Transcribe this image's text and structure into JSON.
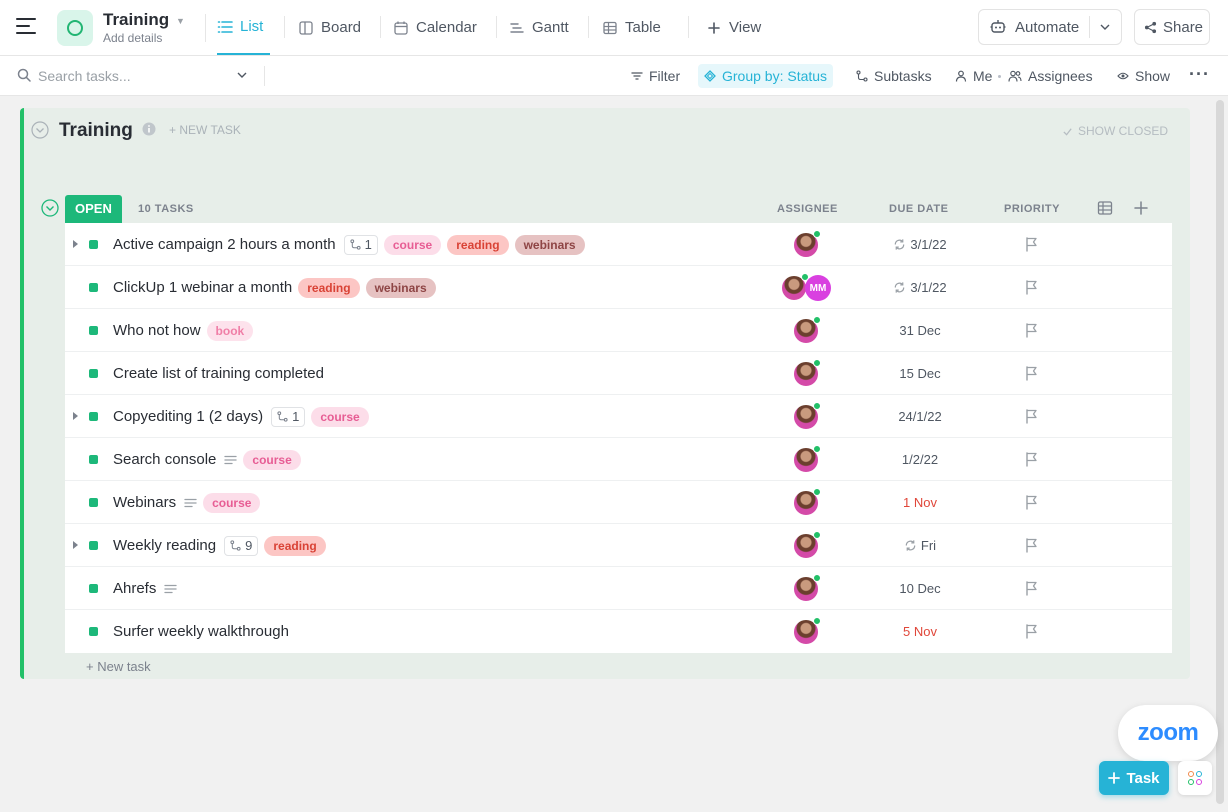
{
  "header": {
    "space_title": "Training",
    "space_subtitle": "Add details",
    "tabs": [
      {
        "label": "List",
        "icon": "list-icon",
        "active": true
      },
      {
        "label": "Board",
        "icon": "board-icon",
        "active": false
      },
      {
        "label": "Calendar",
        "icon": "calendar-icon",
        "active": false
      },
      {
        "label": "Gantt",
        "icon": "gantt-icon",
        "active": false
      },
      {
        "label": "Table",
        "icon": "table-icon",
        "active": false
      }
    ],
    "add_view_label": "View",
    "automate_label": "Automate",
    "share_label": "Share"
  },
  "toolbar": {
    "search_placeholder": "Search tasks...",
    "filter_label": "Filter",
    "group_by_label": "Group by: Status",
    "subtasks_label": "Subtasks",
    "me_label": "Me",
    "assignees_label": "Assignees",
    "show_label": "Show"
  },
  "list": {
    "title": "Training",
    "new_task_label": "+ NEW TASK",
    "show_closed_label": "SHOW CLOSED",
    "status_label": "OPEN",
    "task_count_label": "10 TASKS",
    "columns": {
      "assignee": "ASSIGNEE",
      "due_date": "DUE DATE",
      "priority": "PRIORITY"
    },
    "new_task_bottom_label": "+ New task",
    "tasks": [
      {
        "name": "Active campaign 2 hours a month",
        "has_subtasks": true,
        "subtask_count": "1",
        "has_description": false,
        "tags": [
          "course",
          "reading",
          "webinars"
        ],
        "assignees": [
          "avatar"
        ],
        "due": "3/1/22",
        "recurring": true,
        "overdue": false
      },
      {
        "name": "ClickUp 1 webinar a month",
        "has_subtasks": false,
        "subtask_count": "",
        "has_description": false,
        "tags": [
          "reading",
          "webinars"
        ],
        "assignees": [
          "avatar",
          "MM"
        ],
        "due": "3/1/22",
        "recurring": true,
        "overdue": false
      },
      {
        "name": "Who not how",
        "has_subtasks": false,
        "subtask_count": "",
        "has_description": false,
        "tags": [
          "book"
        ],
        "assignees": [
          "avatar"
        ],
        "due": "31 Dec",
        "recurring": false,
        "overdue": false
      },
      {
        "name": "Create list of training completed",
        "has_subtasks": false,
        "subtask_count": "",
        "has_description": false,
        "tags": [],
        "assignees": [
          "avatar"
        ],
        "due": "15 Dec",
        "recurring": false,
        "overdue": false
      },
      {
        "name": "Copyediting 1 (2 days)",
        "has_subtasks": true,
        "subtask_count": "1",
        "has_description": false,
        "tags": [
          "course"
        ],
        "assignees": [
          "avatar"
        ],
        "due": "24/1/22",
        "recurring": false,
        "overdue": false
      },
      {
        "name": "Search console",
        "has_subtasks": false,
        "subtask_count": "",
        "has_description": true,
        "tags": [
          "course"
        ],
        "assignees": [
          "avatar"
        ],
        "due": "1/2/22",
        "recurring": false,
        "overdue": false
      },
      {
        "name": "Webinars",
        "has_subtasks": false,
        "subtask_count": "",
        "has_description": true,
        "tags": [
          "course"
        ],
        "assignees": [
          "avatar"
        ],
        "due": "1 Nov",
        "recurring": false,
        "overdue": true
      },
      {
        "name": "Weekly reading",
        "has_subtasks": true,
        "subtask_count": "9",
        "has_description": false,
        "tags": [
          "reading"
        ],
        "assignees": [
          "avatar"
        ],
        "due": "Fri",
        "recurring": true,
        "overdue": false
      },
      {
        "name": "Ahrefs",
        "has_subtasks": false,
        "subtask_count": "",
        "has_description": true,
        "tags": [],
        "assignees": [
          "avatar"
        ],
        "due": "10 Dec",
        "recurring": false,
        "overdue": false
      },
      {
        "name": "Surfer weekly walkthrough",
        "has_subtasks": false,
        "subtask_count": "",
        "has_description": false,
        "tags": [],
        "assignees": [
          "avatar"
        ],
        "due": "5 Nov",
        "recurring": false,
        "overdue": true
      }
    ]
  },
  "floating": {
    "zoom_label": "zoom",
    "task_button_label": "Task"
  },
  "colors": {
    "accent": "#26b3d6",
    "status_open": "#1db87a",
    "list_border": "#22c068",
    "overdue": "#e0473a"
  }
}
